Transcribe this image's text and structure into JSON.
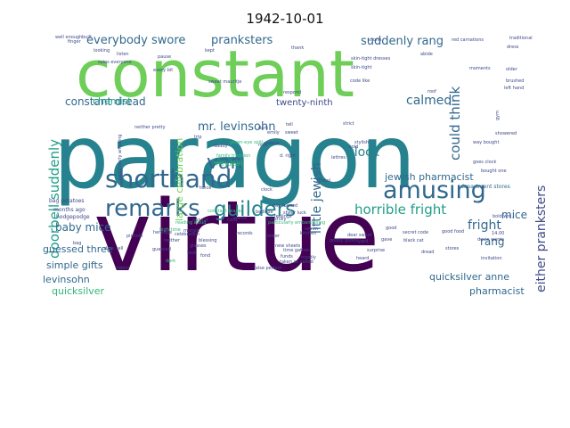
{
  "title": "1942-10-01",
  "colors": {
    "viridis_dark": "#440154",
    "viridis_purple": "#482878",
    "viridis_blue": "#3e4989",
    "viridis_steel": "#31688e",
    "viridis_teal": "#26828e",
    "viridis_teal2": "#1f9e89",
    "viridis_green": "#35b779",
    "viridis_lime": "#6ece58",
    "viridis_yellowgreen": "#b5de2b",
    "viridis_yellow": "#fde725"
  },
  "words": [
    {
      "text": "virtue",
      "color": "#440154"
    },
    {
      "text": "paragon",
      "color": "#26828e"
    },
    {
      "text": "constant",
      "color": "#6ece58"
    },
    {
      "text": "shorthand",
      "color": "#31688e"
    },
    {
      "text": "amusing",
      "color": "#31688e"
    },
    {
      "text": "remarks",
      "color": "#31688e"
    },
    {
      "text": "guilders",
      "color": "#26828e"
    },
    {
      "text": "van",
      "color": "#31688e"
    },
    {
      "text": "horrible fright",
      "color": "#1f9e89"
    },
    {
      "text": "everybody swore",
      "color": "#31688e"
    },
    {
      "text": "pranksters",
      "color": "#31688e"
    },
    {
      "text": "suddenly rang",
      "color": "#31688e"
    },
    {
      "text": "doorbell suddenly",
      "color": "#1f9e89"
    },
    {
      "text": "could think",
      "color": "#31688e"
    },
    {
      "text": "little jewish",
      "color": "#31688e"
    },
    {
      "text": "either pranksters",
      "color": "#3e4989"
    },
    {
      "text": "clock",
      "color": "#26828e"
    },
    {
      "text": "mr. levinsohn",
      "color": "#31688e"
    },
    {
      "text": "constant dread",
      "color": "#31688e"
    },
    {
      "text": "calmed",
      "color": "#31688e"
    },
    {
      "text": "fright",
      "color": "#31688e"
    },
    {
      "text": "jewish pharmacist",
      "color": "#31688e"
    },
    {
      "text": "chemist",
      "color": "#1f9e89"
    },
    {
      "text": "baby mice",
      "color": "#31688e"
    },
    {
      "text": "guessed three",
      "color": "#31688e"
    },
    {
      "text": "simple gifts",
      "color": "#31688e"
    },
    {
      "text": "levinsohn",
      "color": "#31688e"
    },
    {
      "text": "quicksilver",
      "color": "#35b779"
    },
    {
      "text": "quicksilver anne",
      "color": "#31688e"
    },
    {
      "text": "pharmacist",
      "color": "#31688e"
    },
    {
      "text": "mice",
      "color": "#31688e"
    },
    {
      "text": "rang",
      "color": "#31688e"
    },
    {
      "text": "twenty-ninth",
      "color": "#3e4989"
    },
    {
      "text": "large celebration",
      "color": "#6ece58"
    },
    {
      "text": "department stores",
      "color": "#31688e"
    },
    {
      "text": "bag potatoes",
      "color": "#3e4989"
    },
    {
      "text": "hodgepodge",
      "color": "#3e4989"
    },
    {
      "text": "months ago",
      "color": "#3e4989"
    },
    {
      "text": "good food",
      "color": "#3e4989"
    },
    {
      "text": "secret code",
      "color": "#3e4989"
    },
    {
      "text": "black cat",
      "color": "#3e4989"
    },
    {
      "text": "guessed",
      "color": "#3e4989"
    },
    {
      "text": "respond",
      "color": "#3e4989"
    },
    {
      "text": "dread",
      "color": "#3e4989"
    },
    {
      "text": "every bit",
      "color": "#3e4989"
    },
    {
      "text": "sweet mauritje",
      "color": "#3e4989"
    },
    {
      "text": "finger",
      "color": "#3e4989"
    },
    {
      "text": "traditional",
      "color": "#3e4989"
    },
    {
      "text": "kept",
      "color": "#3e4989"
    },
    {
      "text": "neither pretty",
      "color": "#3e4989"
    },
    {
      "text": "bought one",
      "color": "#3e4989"
    },
    {
      "text": "way bought",
      "color": "#3e4989"
    },
    {
      "text": "goes clock",
      "color": "#3e4989"
    },
    {
      "text": "showered",
      "color": "#3e4989"
    },
    {
      "text": "family tradition",
      "color": "#35b779"
    },
    {
      "text": "saving 16.00",
      "color": "#35b779"
    },
    {
      "text": "neither",
      "color": "#3e4989"
    },
    {
      "text": "good",
      "color": "#3e4989"
    },
    {
      "text": "bold wri...",
      "color": "#3e4989"
    },
    {
      "text": "14.00",
      "color": "#3e4989"
    },
    {
      "text": "down wants",
      "color": "#3e4989"
    },
    {
      "text": "invitation",
      "color": "#3e4989"
    },
    {
      "text": "stores",
      "color": "#3e4989"
    },
    {
      "text": "gave",
      "color": "#3e4989"
    },
    {
      "text": "yard",
      "color": "#3e4989"
    },
    {
      "text": "high time",
      "color": "#35b779"
    },
    {
      "text": "margot",
      "color": "#3e4989"
    },
    {
      "text": "blessing",
      "color": "#3e4989"
    },
    {
      "text": "sheer",
      "color": "#3e4989"
    },
    {
      "text": "dark",
      "color": "#35b779"
    },
    {
      "text": "kitchen",
      "color": "#3e4989"
    },
    {
      "text": "new sheets",
      "color": "#3e4989"
    },
    {
      "text": "fabric",
      "color": "#3e4989"
    },
    {
      "text": "mostly",
      "color": "#3e4989"
    },
    {
      "text": "time gather",
      "color": "#3e4989"
    },
    {
      "text": "funds",
      "color": "#3e4989"
    },
    {
      "text": "taken so called",
      "color": "#3e4989"
    },
    {
      "text": "false perfect",
      "color": "#3e4989"
    },
    {
      "text": "goody goody",
      "color": "#3e4989"
    },
    {
      "text": "sheer luck",
      "color": "#3e4989"
    },
    {
      "text": "heard",
      "color": "#3e4989"
    },
    {
      "text": "dear sweet",
      "color": "#3e4989"
    },
    {
      "text": "seven",
      "color": "#3e4989"
    },
    {
      "text": "feelings",
      "color": "#3e4989"
    },
    {
      "text": "surprise",
      "color": "#3e4989"
    },
    {
      "text": "bedside",
      "color": "#3e4989"
    },
    {
      "text": "carefully",
      "color": "#3e4989"
    },
    {
      "text": "glasses",
      "color": "#3e4989"
    },
    {
      "text": "unpack",
      "color": "#3e4989"
    },
    {
      "text": "fond",
      "color": "#3e4989"
    },
    {
      "text": "wants",
      "color": "#3e4989"
    },
    {
      "text": "took",
      "color": "#3e4989"
    },
    {
      "text": "well enough",
      "color": "#3e4989"
    },
    {
      "text": "built",
      "color": "#3e4989"
    },
    {
      "text": "looking",
      "color": "#3e4989"
    },
    {
      "text": "pause",
      "color": "#3e4989"
    },
    {
      "text": "sales everyone",
      "color": "#3e4989"
    },
    {
      "text": "listen",
      "color": "#3e4989"
    },
    {
      "text": "thank",
      "color": "#3e4989"
    },
    {
      "text": "shorts",
      "color": "#3e4989"
    },
    {
      "text": "skin-tight dresses",
      "color": "#3e4989"
    },
    {
      "text": "skin-tight",
      "color": "#3e4989"
    },
    {
      "text": "code like",
      "color": "#3e4989"
    },
    {
      "text": "red carnations",
      "color": "#3e4989"
    },
    {
      "text": "abide",
      "color": "#3e4989"
    },
    {
      "text": "roof",
      "color": "#3e4989"
    },
    {
      "text": "dress",
      "color": "#3e4989"
    },
    {
      "text": "older",
      "color": "#3e4989"
    },
    {
      "text": "brushed",
      "color": "#3e4989"
    },
    {
      "text": "left hand",
      "color": "#3e4989"
    },
    {
      "text": "moments",
      "color": "#3e4989"
    },
    {
      "text": "gym",
      "color": "#3e4989"
    },
    {
      "text": "particularly amusing",
      "color": "#3e4989"
    },
    {
      "text": "reading aloud",
      "color": "#35b779"
    },
    {
      "text": "records",
      "color": "#3e4989"
    },
    {
      "text": "card",
      "color": "#3e4989"
    },
    {
      "text": "bag",
      "color": "#3e4989"
    },
    {
      "text": "green-eye spilt",
      "color": "#35b779"
    },
    {
      "text": "7.75 guilders",
      "color": "#35b779"
    },
    {
      "text": "constant reader",
      "color": "#35b779"
    },
    {
      "text": "daddy",
      "color": "#3e4989"
    },
    {
      "text": "trip",
      "color": "#3e4989"
    },
    {
      "text": "nice",
      "color": "#3e4989"
    },
    {
      "text": "cheese",
      "color": "#3e4989"
    },
    {
      "text": "way toward",
      "color": "#3e4989"
    },
    {
      "text": "celebration",
      "color": "#3e4989"
    },
    {
      "text": "dare sell",
      "color": "#3e4989"
    },
    {
      "text": "twice",
      "color": "#3e4989"
    },
    {
      "text": "heritage",
      "color": "#3e4989"
    },
    {
      "text": "particularly embarrassing",
      "color": "#35b779"
    },
    {
      "text": "pinhole",
      "color": "#3e4989"
    },
    {
      "text": "clock",
      "color": "#3e4989"
    },
    {
      "text": "dark",
      "color": "#3e4989"
    },
    {
      "text": "sweet",
      "color": "#3e4989"
    },
    {
      "text": "d. right",
      "color": "#3e4989"
    },
    {
      "text": "school",
      "color": "#3e4989"
    },
    {
      "text": "lettres",
      "color": "#3e4989"
    },
    {
      "text": "emily",
      "color": "#3e4989"
    },
    {
      "text": "tell",
      "color": "#3e4989"
    },
    {
      "text": "strict",
      "color": "#3e4989"
    },
    {
      "text": "cold",
      "color": "#3e4989"
    },
    {
      "text": "stylish",
      "color": "#3e4989"
    }
  ]
}
